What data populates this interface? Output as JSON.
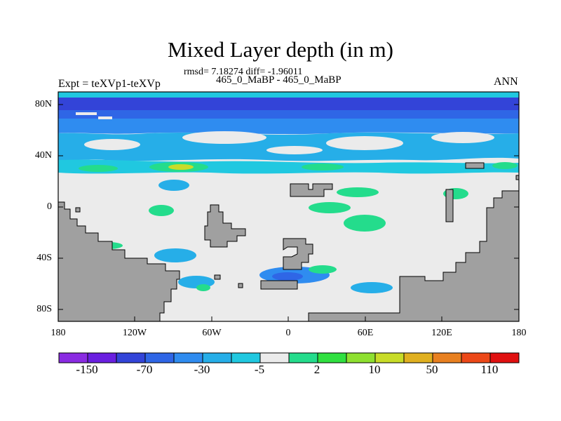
{
  "title": "Mixed Layer depth (in m)",
  "stats_line": "rmsd= 7.18274 diff= -1.96011",
  "cases_line": "465_0_MaBP - 465_0_MaBP",
  "expt_line": "Expt = teXVp1-teXVp",
  "season": "ANN",
  "lat_ticks": [
    "80N",
    "40N",
    "0",
    "40S",
    "80S"
  ],
  "lon_ticks": [
    "180",
    "120W",
    "60W",
    "0",
    "60E",
    "120E",
    "180"
  ],
  "colorbar": {
    "colors": [
      "#8a2be2",
      "#6a1fe0",
      "#3344d8",
      "#2f66e6",
      "#2f8cf0",
      "#26aee8",
      "#20c8e0",
      "#ebebeb",
      "#24dc8c",
      "#30e040",
      "#8ee030",
      "#c8dc28",
      "#e0b020",
      "#e88020",
      "#ec4818",
      "#e01010"
    ],
    "labels": [
      "-150",
      "-70",
      "-30",
      "-5",
      "2",
      "10",
      "50",
      "110"
    ]
  },
  "field_colors": {
    "land": "#a0a0a0",
    "neutral": "#ebebeb",
    "deep_blue": "#2f66e6",
    "blue": "#2f8cf0",
    "light_blue": "#26aee8",
    "cyan": "#20c8e0",
    "green": "#24dc8c",
    "yellow_green": "#c8dc28"
  }
}
